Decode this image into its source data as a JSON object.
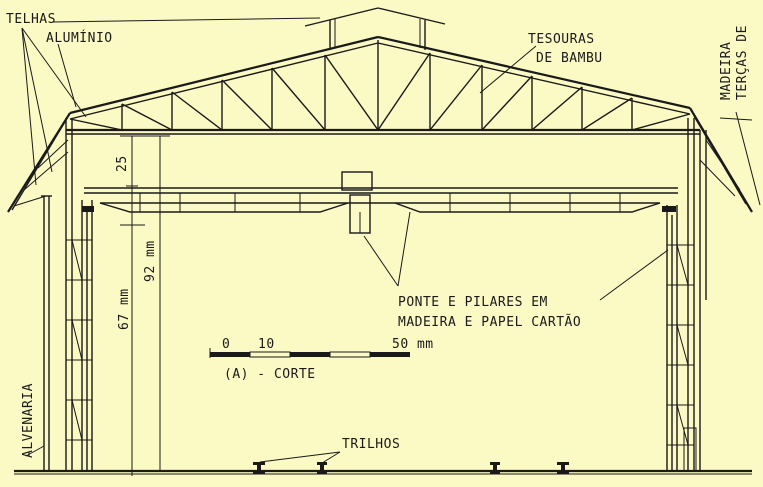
{
  "labels": {
    "telhas": "TELHAS",
    "aluminio": "ALUMÍNIO",
    "tesouras_l1": "TESOURAS",
    "tesouras_l2": "DE BAMBU",
    "tercas_l1": "TERÇAS DE",
    "tercas_l2": "MADEIRA",
    "ponte_l1": "PONTE E PILARES EM",
    "ponte_l2": "MADEIRA E PAPEL CARTÃO",
    "alvenaria": "ALVENARIA",
    "trilhos": "TRILHOS",
    "caption": "(A) - CORTE"
  },
  "dimensions": {
    "d25": "25",
    "d92": "92 mm",
    "d67": "67 mm"
  },
  "scale_bar": {
    "t0": "0",
    "t10": "10",
    "t50": "50 mm"
  },
  "colors": {
    "background": "#fbf9c4",
    "ink": "#1a1a1a"
  }
}
